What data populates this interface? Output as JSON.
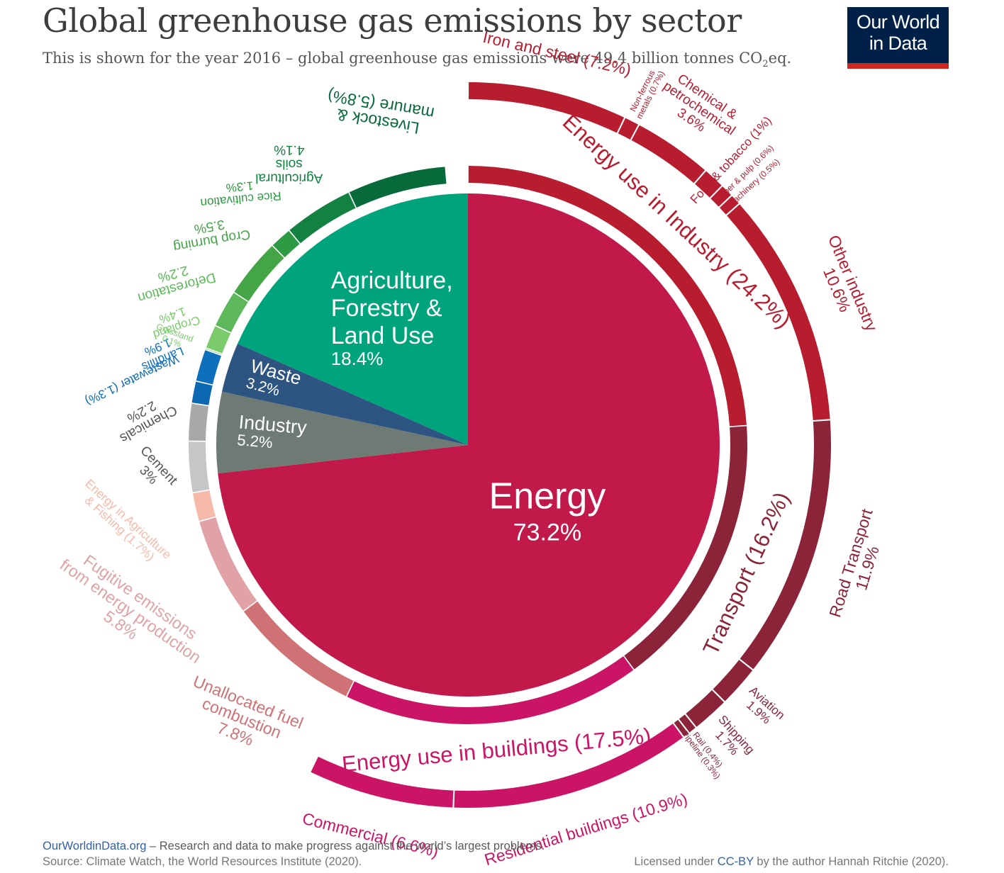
{
  "header": {
    "title": "Global greenhouse gas emissions by sector",
    "subtitle_pre": "This is shown for the year 2016 – global greenhouse gas emissions were 49.4 billion tonnes CO",
    "subtitle_sub": "2",
    "subtitle_post": "eq.",
    "logo_line1": "Our World",
    "logo_line2": "in Data"
  },
  "footer": {
    "site": "OurWorldinData.org",
    "tagline": " – Research and data to make progress against the world’s largest problems.",
    "source": "Source: Climate Watch, the World Resources Institute (2020).",
    "license_pre": "Licensed under ",
    "license_link": "CC-BY",
    "license_post": " by the author Hannah Ritchie  (2020)."
  },
  "colors": {
    "energy": "#c0194a",
    "agriculture": "#00a47c",
    "waste": "#2e5581",
    "industry": "#6e7a74"
  },
  "chart_data": {
    "type": "pie",
    "title": "Global greenhouse gas emissions by sector",
    "unit": "% of global greenhouse gas emissions (2016)",
    "sectors": [
      {
        "name": "Energy",
        "value": 73.2,
        "label": "Energy",
        "pct": "73.2%",
        "color": "#c0194a"
      },
      {
        "name": "Industry",
        "value": 5.2,
        "label": "Industry",
        "pct": "5.2%",
        "color": "#6e7a74"
      },
      {
        "name": "Waste",
        "value": 3.2,
        "label": "Waste",
        "pct": "3.2%",
        "color": "#2e5581"
      },
      {
        "name": "Agriculture, Forestry & Land Use",
        "value": 18.4,
        "label": [
          "Agriculture,",
          "Forestry &",
          "Land Use"
        ],
        "pct": "18.4%",
        "color": "#00a47c"
      }
    ],
    "subsectors": [
      {
        "name": "Energy use in Industry",
        "value": 24.2,
        "text": "Energy use in Industry (24.2%)",
        "color": "#b71c2f",
        "children": [
          {
            "name": "Iron and steel",
            "value": 7.2,
            "text": "Iron and steel (7.2%)"
          },
          {
            "name": "Non-ferrous metals",
            "value": 0.7,
            "text": [
              "Non-ferrous",
              "metals (0.7%)"
            ]
          },
          {
            "name": "Chemical & petrochemical",
            "value": 3.6,
            "text": [
              "Chemical &",
              "petrochemical",
              "3.6%"
            ]
          },
          {
            "name": "Food & tobacco",
            "value": 1.0,
            "text": "Food & tobacco (1%)"
          },
          {
            "name": "Paper & pulp",
            "value": 0.6,
            "text": "Paper & pulp (0.6%)"
          },
          {
            "name": "Machinery",
            "value": 0.5,
            "text": "Machinery (0.5%)"
          },
          {
            "name": "Other industry",
            "value": 10.6,
            "text": [
              "Other industry",
              "10.6%"
            ]
          }
        ]
      },
      {
        "name": "Transport",
        "value": 16.2,
        "text": "Transport (16.2%)",
        "color": "#8b2438",
        "children": [
          {
            "name": "Road Transport",
            "value": 11.9,
            "text": [
              "Road Transport",
              "11.9%"
            ]
          },
          {
            "name": "Aviation",
            "value": 1.9,
            "text": [
              "Aviation",
              "1.9%"
            ]
          },
          {
            "name": "Shipping",
            "value": 1.7,
            "text": [
              "Shipping",
              "1.7%"
            ]
          },
          {
            "name": "Rail",
            "value": 0.4,
            "text": "Rail (0.4%)"
          },
          {
            "name": "Pipeline",
            "value": 0.3,
            "text": "Pipeline (0.3%)"
          }
        ]
      },
      {
        "name": "Energy use in buildings",
        "value": 17.5,
        "text": "Energy use in buildings (17.5%)",
        "color": "#cc1466",
        "children": [
          {
            "name": "Residential buildings",
            "value": 10.9,
            "text": "Residential buildings (10.9%)"
          },
          {
            "name": "Commercial",
            "value": 6.6,
            "text": "Commercial  (6.6%)"
          }
        ]
      },
      {
        "name": "Unallocated fuel combustion",
        "value": 7.8,
        "text": [
          "Unallocated fuel",
          "combustion",
          "7.8%"
        ],
        "color": "#cf7276"
      },
      {
        "name": "Fugitive emissions from energy production",
        "value": 5.8,
        "text": [
          "Fugitive emissions",
          "from energy production",
          "5.8%"
        ],
        "color": "#e0a2a6"
      },
      {
        "name": "Energy in Agriculture & Fishing",
        "value": 1.7,
        "text": [
          "Energy in Agriculture",
          "& Fishing (1.7%)"
        ],
        "color": "#f7b9a9"
      },
      {
        "name": "Cement",
        "value": 3.0,
        "text": [
          "Cement",
          "3%"
        ],
        "color": "#c6c6c6"
      },
      {
        "name": "Chemicals",
        "value": 2.2,
        "text": [
          "Chemicals",
          "2.2%"
        ],
        "color": "#a8a8a8"
      },
      {
        "name": "Wastewater",
        "value": 1.3,
        "text": "Wastewater (1.3%)",
        "color": "#0c68b3"
      },
      {
        "name": "Landfills",
        "value": 1.9,
        "text": [
          "Landfills",
          "1.9%"
        ],
        "color": "#0e6fbd"
      },
      {
        "name": "Grassland",
        "value": 0.1,
        "text": [
          "Grassland",
          "0.1%"
        ],
        "color": "#7acb6a"
      },
      {
        "name": "Cropland",
        "value": 1.4,
        "text": [
          "Cropland",
          "1.4%"
        ],
        "color": "#7acb6a"
      },
      {
        "name": "Deforestation",
        "value": 2.2,
        "text": [
          "Deforestation",
          "2.2%"
        ],
        "color": "#5cb85a"
      },
      {
        "name": "Crop burning",
        "value": 3.5,
        "text": [
          "Crop burning",
          "3.5%"
        ],
        "color": "#44a547"
      },
      {
        "name": "Rice cultivation",
        "value": 1.3,
        "text": [
          "Rice cultivation",
          "1.3%"
        ],
        "color": "#2f9a44"
      },
      {
        "name": "Agricultural soils",
        "value": 4.1,
        "text": [
          "Agricultural",
          "soils",
          "4.1%"
        ],
        "color": "#138141"
      },
      {
        "name": "Livestock & manure",
        "value": 5.8,
        "text": [
          "Livestock &",
          "manure (5.8%)"
        ],
        "color": "#076a3a"
      }
    ]
  }
}
